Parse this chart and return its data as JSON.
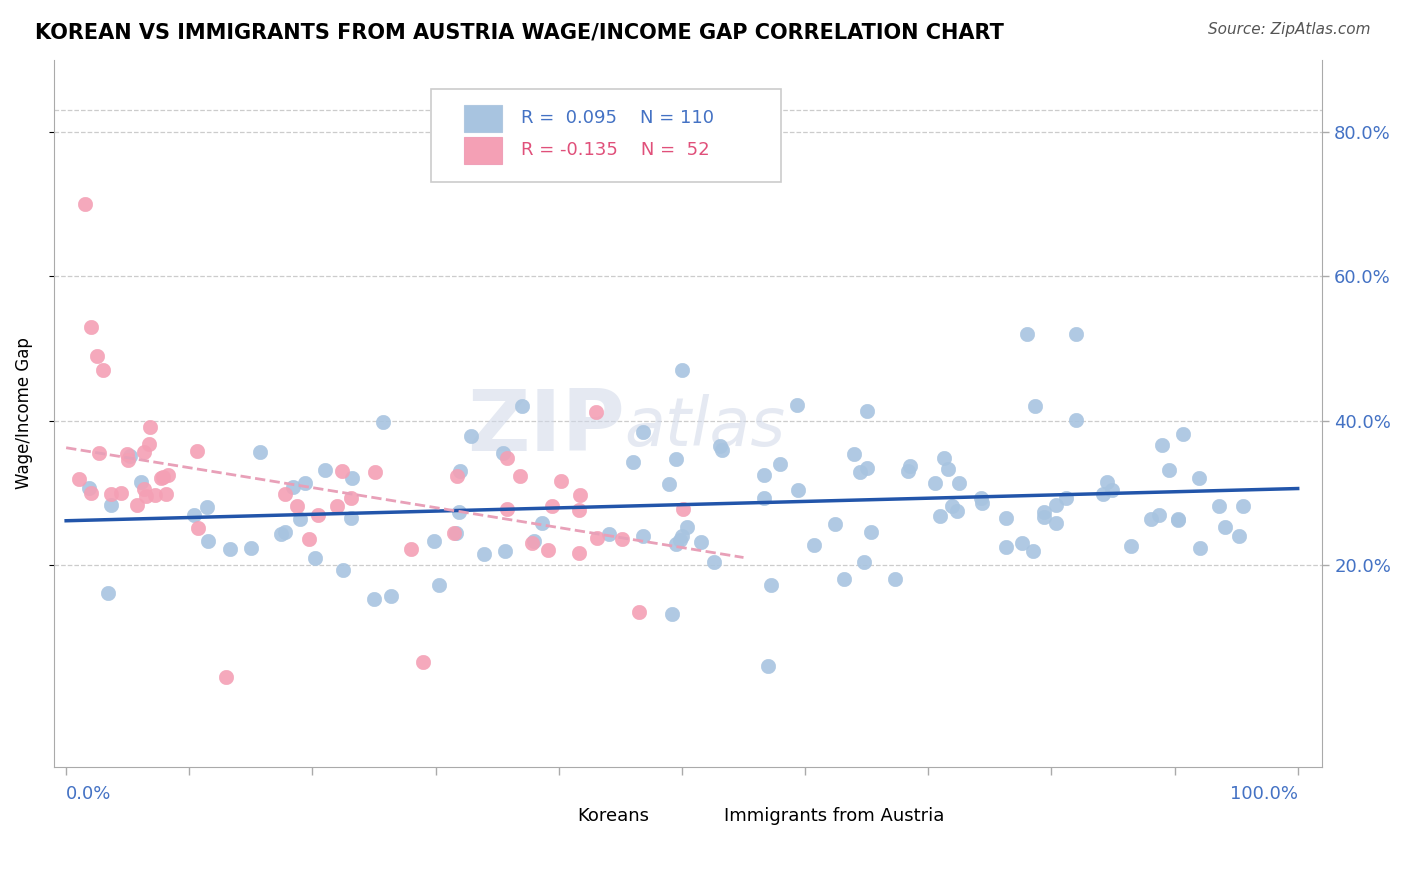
{
  "title": "KOREAN VS IMMIGRANTS FROM AUSTRIA WAGE/INCOME GAP CORRELATION CHART",
  "source": "Source: ZipAtlas.com",
  "ylabel": "Wage/Income Gap",
  "legend_label1": "Koreans",
  "legend_label2": "Immigrants from Austria",
  "R1": 0.095,
  "N1": 110,
  "R2": -0.135,
  "N2": 52,
  "korean_color": "#a8c4e0",
  "austria_color": "#f4a0b5",
  "trend_color_korean": "#2255aa",
  "trend_color_austria": "#e8a0b8",
  "watermark_zip": "ZIP",
  "watermark_atlas": "atlas",
  "xlim": [
    0.0,
    1.0
  ],
  "ylim": [
    -0.08,
    0.9
  ],
  "y_ticks": [
    0.2,
    0.4,
    0.6,
    0.8
  ],
  "y_tick_labels": [
    "20.0%",
    "40.0%",
    "60.0%",
    "80.0%"
  ],
  "x_ticks": [
    0.0,
    0.1,
    0.2,
    0.3,
    0.4,
    0.5,
    0.6,
    0.7,
    0.8,
    0.9,
    1.0
  ],
  "seed": 12345
}
